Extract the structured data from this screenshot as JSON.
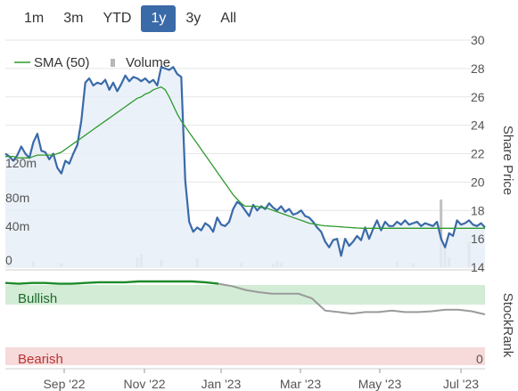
{
  "range_tabs": [
    {
      "label": "1m",
      "active": false
    },
    {
      "label": "3m",
      "active": false
    },
    {
      "label": "YTD",
      "active": false
    },
    {
      "label": "1y",
      "active": true
    },
    {
      "label": "3y",
      "active": false
    },
    {
      "label": "All",
      "active": false
    }
  ],
  "colors": {
    "price_line": "#3a6aa8",
    "price_fill": "#e8eef8",
    "sma_line": "#2e9a2e",
    "volume_bar": "#c0c0c0",
    "bullish_band": "#d3ecd6",
    "bearish_band": "#f7dada",
    "stockrank_bull": "#1e8a2a",
    "stockrank_neutral": "#9a9a9a",
    "accent_tab": "#3a6aa8"
  },
  "chart_data": [
    {
      "type": "line",
      "ylabel": "Share Price",
      "ylim": [
        14,
        30
      ],
      "y_ticks": [
        "30",
        "28",
        "26",
        "24",
        "22",
        "20",
        "18",
        "16",
        "14"
      ],
      "x_tick_labels": [
        "Sep '22",
        "Nov '22",
        "Jan '23",
        "Mar '23",
        "May '23",
        "Jul '23"
      ],
      "legend": {
        "placement": "top-left",
        "items": [
          "SMA (50)",
          "Volume"
        ]
      },
      "volume_axis_labels": [
        "120m",
        "80m",
        "40m",
        "0"
      ],
      "volume_max": 150,
      "x": [
        0,
        3,
        6,
        9,
        12,
        15,
        18,
        21,
        24,
        27,
        30,
        33,
        36,
        39,
        42,
        45,
        48,
        51,
        54,
        57,
        60,
        63,
        66,
        69,
        72,
        75,
        78,
        81,
        84,
        87,
        90,
        93,
        96,
        99,
        102,
        105,
        108,
        111,
        114,
        117,
        120,
        123,
        126,
        129,
        132,
        135,
        138,
        141,
        144,
        147,
        150,
        153,
        156,
        159,
        162,
        165,
        168,
        171,
        174,
        177,
        180,
        183,
        186,
        189,
        192,
        195,
        198,
        201,
        204,
        207,
        210,
        213,
        216,
        219,
        222,
        225,
        228,
        231,
        234,
        237,
        240,
        243,
        246,
        249,
        252,
        255,
        258,
        261,
        264,
        267,
        270,
        273,
        276,
        279,
        282,
        285,
        288,
        291,
        294,
        297,
        300,
        303,
        306,
        309,
        312,
        315,
        318,
        321,
        324,
        327,
        330,
        333,
        336,
        339,
        342,
        345,
        348,
        351,
        354,
        357,
        360
      ],
      "series": [
        {
          "name": "Price",
          "values": [
            22.0,
            21.8,
            21.5,
            21.9,
            22.5,
            22.0,
            21.7,
            22.8,
            23.4,
            22.2,
            22.1,
            21.6,
            22.0,
            21.0,
            20.6,
            21.5,
            21.3,
            22.0,
            22.6,
            24.3,
            27.0,
            27.3,
            26.8,
            27.0,
            26.9,
            27.2,
            26.5,
            27.0,
            26.4,
            26.9,
            27.5,
            27.1,
            27.4,
            27.3,
            27.1,
            27.3,
            27.0,
            27.2,
            26.8,
            28.1,
            28.0,
            27.9,
            28.1,
            27.6,
            27.4,
            20.1,
            17.2,
            16.5,
            16.8,
            16.6,
            17.1,
            16.9,
            16.5,
            17.5,
            17.0,
            16.9,
            17.2,
            18.1,
            18.6,
            18.4,
            18.0,
            17.6,
            18.4,
            18.0,
            18.3,
            18.1,
            18.5,
            18.2,
            18.0,
            18.3,
            17.9,
            18.1,
            17.7,
            17.8,
            18.0,
            17.6,
            17.5,
            17.2,
            16.8,
            16.5,
            15.8,
            15.4,
            15.9,
            16.0,
            14.8,
            16.0,
            15.5,
            15.8,
            16.2,
            15.9,
            16.8,
            16.0,
            16.7,
            17.3,
            16.6,
            17.2,
            16.9,
            16.9,
            17.2,
            17.0,
            17.3,
            17.0,
            17.1,
            17.2,
            16.9,
            17.1,
            17.0,
            16.9,
            17.2,
            16.0,
            15.4,
            16.4,
            16.2,
            17.3,
            17.0,
            17.1,
            17.3,
            17.0,
            16.9,
            17.1,
            16.8
          ]
        },
        {
          "name": "SMA (50)",
          "values": [
            21.8,
            21.8,
            21.8,
            21.7,
            21.7,
            21.7,
            21.7,
            21.8,
            21.9,
            21.9,
            21.9,
            21.9,
            21.9,
            22.0,
            22.1,
            22.3,
            22.5,
            22.7,
            22.9,
            23.1,
            23.3,
            23.5,
            23.7,
            23.9,
            24.1,
            24.3,
            24.5,
            24.7,
            24.9,
            25.1,
            25.3,
            25.5,
            25.7,
            25.9,
            26.0,
            26.2,
            26.3,
            26.5,
            26.6,
            26.7,
            26.5,
            26.0,
            25.4,
            24.8,
            24.3,
            23.9,
            23.5,
            23.1,
            22.7,
            22.3,
            21.9,
            21.5,
            21.1,
            20.7,
            20.3,
            19.9,
            19.5,
            19.1,
            18.8,
            18.5,
            18.3,
            18.3,
            18.3,
            18.3,
            18.2,
            18.2,
            18.1,
            18.0,
            17.9,
            17.8,
            17.7,
            17.6,
            17.5,
            17.4,
            17.3,
            17.2,
            17.1,
            17.05,
            17.0,
            16.95,
            16.92,
            16.9,
            16.88,
            16.86,
            16.84,
            16.82,
            16.8,
            16.78,
            16.76,
            16.75,
            16.74,
            16.74,
            16.74,
            16.74,
            16.74,
            16.74,
            16.74,
            16.74,
            16.74,
            16.74,
            16.74,
            16.74,
            16.74,
            16.74,
            16.74,
            16.74,
            16.74,
            16.74,
            16.74,
            16.74,
            16.74,
            16.74,
            16.74,
            16.74,
            16.74,
            16.74,
            16.74,
            16.74,
            16.74,
            16.74,
            16.74
          ]
        }
      ],
      "volume_bars": [
        {
          "x": 3,
          "value": 10
        },
        {
          "x": 21,
          "value": 8
        },
        {
          "x": 42,
          "value": 6
        },
        {
          "x": 99,
          "value": 14
        },
        {
          "x": 102,
          "value": 18
        },
        {
          "x": 117,
          "value": 10
        },
        {
          "x": 144,
          "value": 13
        },
        {
          "x": 177,
          "value": 6
        },
        {
          "x": 201,
          "value": 5
        },
        {
          "x": 204,
          "value": 8
        },
        {
          "x": 207,
          "value": 6
        },
        {
          "x": 294,
          "value": 7
        },
        {
          "x": 306,
          "value": 6
        },
        {
          "x": 327,
          "value": 95
        },
        {
          "x": 330,
          "value": 30
        },
        {
          "x": 333,
          "value": 14
        },
        {
          "x": 348,
          "value": 36
        }
      ]
    },
    {
      "type": "line",
      "ylabel": "StockRank",
      "bands": [
        "Bullish",
        "Bearish"
      ],
      "y_ticks": [
        "0"
      ],
      "x": [
        0,
        10,
        20,
        30,
        40,
        50,
        60,
        70,
        80,
        90,
        100,
        110,
        120,
        130,
        140,
        150,
        160,
        170,
        180,
        190,
        200,
        210,
        220,
        230,
        240,
        250,
        260,
        270,
        280,
        290,
        300,
        310,
        320,
        330,
        340,
        350,
        360
      ],
      "series": [
        {
          "name": "StockRank",
          "values": [
            98,
            97,
            98,
            98,
            97,
            97,
            98,
            99,
            99,
            99,
            100,
            100,
            100,
            100,
            100,
            99,
            97,
            94,
            89,
            86,
            84,
            84,
            84,
            78,
            62,
            60,
            58,
            60,
            60,
            62,
            60,
            60,
            61,
            63,
            63,
            61,
            57
          ],
          "bull_until_x": 165
        }
      ]
    }
  ]
}
